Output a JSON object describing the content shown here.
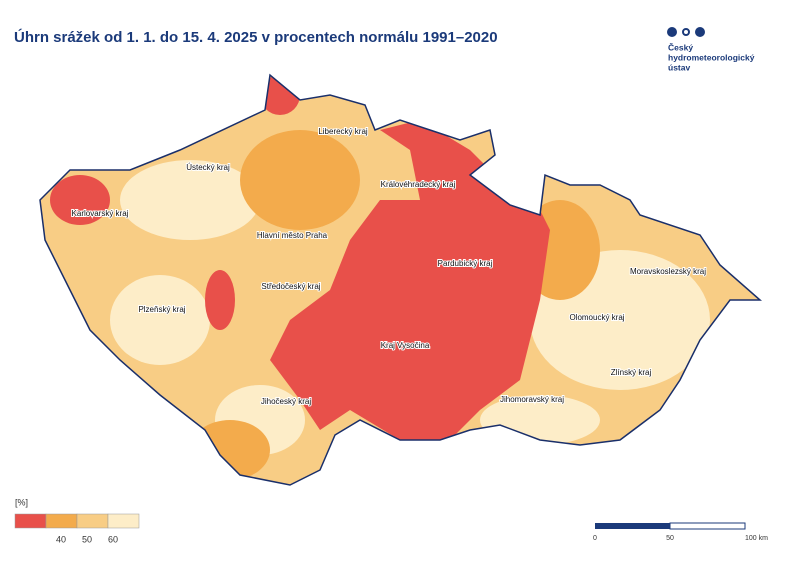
{
  "title": "Úhrn srážek od 1. 1. do 15. 4. 2025 v procentech normálu 1991–2020",
  "logo": {
    "lines": [
      "Český",
      "hydrometeorologický",
      "ústav"
    ]
  },
  "regions": [
    "Liberecký kraj",
    "Ústecký kraj",
    "Královéhradecký kraj",
    "Karlovarský kraj",
    "Hlavní město Praha",
    "Pardubický kraj",
    "Moravskoslezský kraj",
    "Středočeský kraj",
    "Plzeňský kraj",
    "Olomoucký kraj",
    "Kraj Vysočina",
    "Zlínský kraj",
    "Jihočeský kraj",
    "Jihomoravský kraj"
  ],
  "legend": {
    "unit": "[%]",
    "colors": [
      "#e8504a",
      "#f3ab4c",
      "#f8cd85",
      "#fdedc8"
    ],
    "ticks": [
      "40",
      "50",
      "60"
    ]
  },
  "scale_bar": {
    "ticks": [
      "0",
      "50",
      "100 km"
    ]
  }
}
